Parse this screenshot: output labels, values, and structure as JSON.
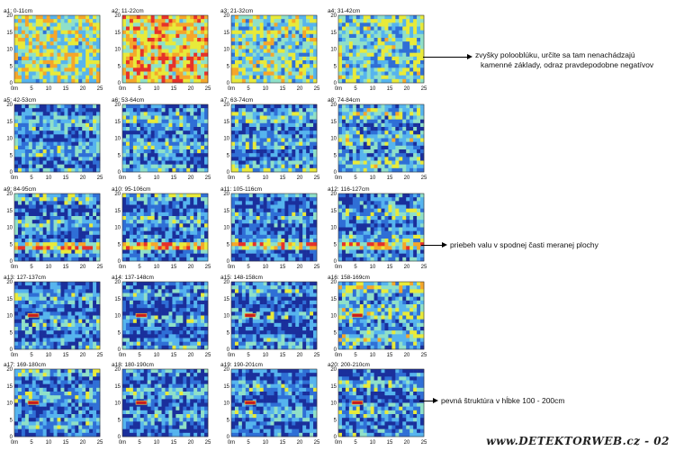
{
  "chart_data": {
    "type": "heatmap",
    "xticks": [
      "0m",
      "5",
      "10",
      "15",
      "20",
      "25"
    ],
    "yticks": [
      "0",
      "5",
      "10",
      "15",
      "20"
    ],
    "xlim": [
      0,
      25
    ],
    "ylim": [
      0,
      20
    ],
    "colormap": [
      "#1a2f9c",
      "#2f6fd6",
      "#56b4ee",
      "#8fe0c8",
      "#e8ea3a",
      "#f5a62a",
      "#e6312a"
    ],
    "panels": [
      {
        "title": "a1: 0-11cm"
      },
      {
        "title": "a2: 11-22cm"
      },
      {
        "title": "a3: 21-32cm"
      },
      {
        "title": "a4: 31-42cm"
      },
      {
        "title": "a5: 42-53cm"
      },
      {
        "title": "a6: 53-64cm"
      },
      {
        "title": "a7: 63-74cm"
      },
      {
        "title": "a8: 74-84cm"
      },
      {
        "title": "a9: 84-95cm"
      },
      {
        "title": "a10: 95-106cm"
      },
      {
        "title": "a11: 105-116cm"
      },
      {
        "title": "a12: 116-127cm"
      },
      {
        "title": "a13: 127-137cm"
      },
      {
        "title": "a14: 137-148cm"
      },
      {
        "title": "a15: 148-158cm"
      },
      {
        "title": "a16: 158-169cm"
      },
      {
        "title": "a17: 169-180cm"
      },
      {
        "title": "a18: 180-190cm"
      },
      {
        "title": "a19: 190-201cm"
      },
      {
        "title": "a20: 200-210cm"
      }
    ]
  },
  "annotations": [
    {
      "lines": [
        "zvyšky polooblúku, určite sa tam nenachádzajú",
        "kamenné základy, odraz pravdepodobne negatívov"
      ]
    },
    {
      "lines": [
        "priebeh valu v spodnej časti meranej plochy"
      ]
    },
    {
      "lines": [
        "pevná štruktúra v hĺbke 100 - 200cm"
      ]
    }
  ],
  "watermark": "www.DETEKTORWEB.cz - 02"
}
